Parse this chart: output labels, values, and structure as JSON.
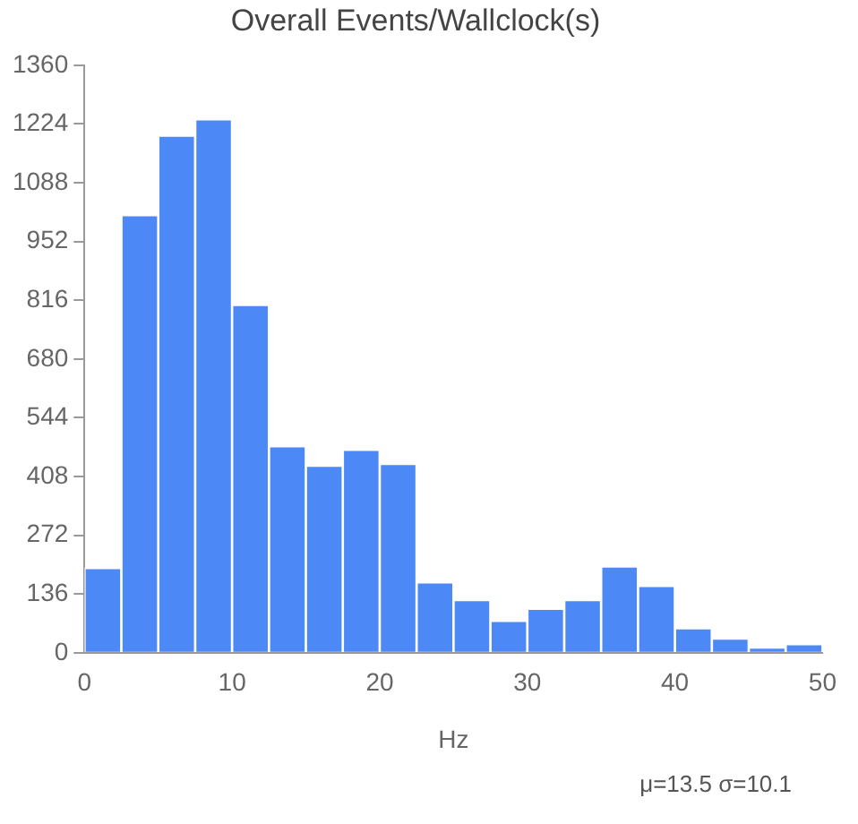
{
  "chart_data": {
    "type": "histogram",
    "title": "Overall Events/Wallclock(s)",
    "xlabel": "Hz",
    "bins": [
      0,
      2.5,
      5,
      7.5,
      10,
      12.5,
      15,
      17.5,
      20,
      22.5,
      25,
      27.5,
      30,
      32.5,
      35,
      37.5,
      40,
      42.5,
      45,
      47.5,
      50
    ],
    "values": [
      196,
      1013,
      1197,
      1235,
      805,
      478,
      433,
      470,
      437,
      163,
      122,
      74,
      102,
      122,
      200,
      155,
      57,
      33,
      12,
      20
    ],
    "color": "#4d88f7",
    "xlim": [
      0,
      50
    ],
    "xticks": [
      0,
      10,
      20,
      30,
      40,
      50
    ],
    "ylim": [
      0,
      1360
    ],
    "yticks": [
      0,
      136,
      272,
      408,
      544,
      680,
      816,
      952,
      1088,
      1224,
      1360
    ],
    "grid": false,
    "legend": false,
    "annotations": [
      "μ=13.5 σ=10.1"
    ]
  }
}
